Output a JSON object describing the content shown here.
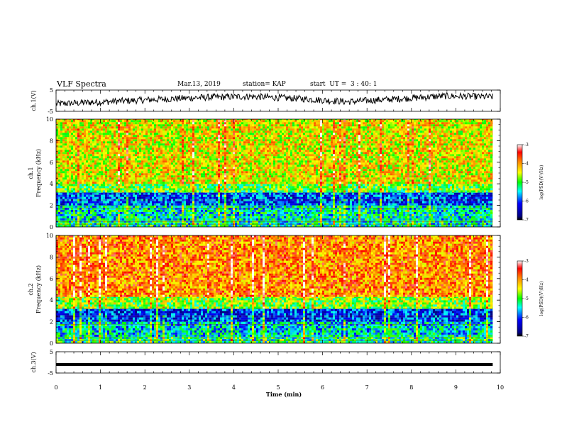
{
  "header": {
    "title": "VLF Spectra",
    "date": "Mar.13, 2019",
    "station": "station= KAP",
    "start": "start  UT =  3 : 40: 1"
  },
  "chart_data": [
    {
      "type": "line",
      "panel": "ch1-waveform",
      "ylabel": "ch.1(V)",
      "yticks": [
        "5",
        "-5"
      ],
      "ylim": [
        -5,
        5
      ],
      "x_range_min": [
        0,
        9.83
      ],
      "series": [
        {
          "values_description_free": true,
          "trend": [
            -1.5,
            -0.5,
            0.5,
            1.5,
            2.0,
            1.0,
            -0.5,
            0.8,
            2.2,
            1.8
          ]
        }
      ],
      "color": "#000000"
    },
    {
      "type": "heatmap",
      "panel": "ch1-spectrogram",
      "ylabel": "ch.1\nFrequency (kHz)",
      "yticks": [
        "0",
        "2",
        "4",
        "6",
        "8",
        "10"
      ],
      "ylim": [
        0,
        10
      ],
      "colorbar": {
        "label": "log(PSD)(V²/Hz)",
        "ticks": [
          "-3",
          "-4",
          "-5",
          "-6",
          "-7"
        ],
        "range": [
          -7,
          -3
        ]
      },
      "band_levels": [
        {
          "freq": [
            0,
            0.6
          ],
          "log_psd": -5.3
        },
        {
          "freq": [
            0.6,
            2.0
          ],
          "log_psd": -5.4
        },
        {
          "freq": [
            2.0,
            3.2
          ],
          "log_psd": -6.0
        },
        {
          "freq": [
            3.2,
            4.0
          ],
          "log_psd": -4.9
        },
        {
          "freq": [
            4.0,
            10.0
          ],
          "log_psd": -4.4
        }
      ]
    },
    {
      "type": "heatmap",
      "panel": "ch2-spectrogram",
      "ylabel": "ch.2\nFrequency (kHz)",
      "yticks": [
        "0",
        "2",
        "4",
        "6",
        "8",
        "10"
      ],
      "ylim": [
        0,
        10
      ],
      "colorbar": {
        "label": "log(PSD)(V²/Hz)",
        "ticks": [
          "-3",
          "-4",
          "-5",
          "-6",
          "-7"
        ],
        "range": [
          -7,
          -3
        ]
      },
      "band_levels": [
        {
          "freq": [
            0,
            0.6
          ],
          "log_psd": -5.2
        },
        {
          "freq": [
            0.6,
            2.0
          ],
          "log_psd": -5.5
        },
        {
          "freq": [
            2.0,
            3.2
          ],
          "log_psd": -6.1
        },
        {
          "freq": [
            3.2,
            4.3
          ],
          "log_psd": -4.8
        },
        {
          "freq": [
            4.3,
            10.0
          ],
          "log_psd": -3.9
        }
      ]
    },
    {
      "type": "line",
      "panel": "ch3-waveform",
      "ylabel": "ch.3(V)",
      "yticks": [
        "5",
        "-5"
      ],
      "ylim": [
        -5,
        5
      ],
      "series": [
        {
          "constant_value": -1.0
        }
      ],
      "color": "#000000"
    }
  ],
  "xaxis": {
    "label": "Time (min)",
    "ticks": [
      "0",
      "1",
      "2",
      "3",
      "4",
      "5",
      "6",
      "7",
      "8",
      "9",
      "10"
    ],
    "xlim": [
      0,
      10
    ],
    "data_end": 9.83
  }
}
